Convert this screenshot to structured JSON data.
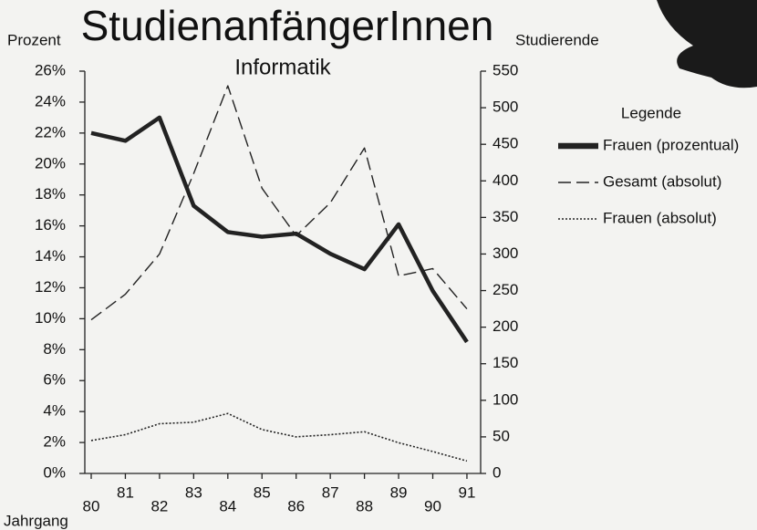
{
  "chart_data": {
    "type": "line",
    "title": "StudienanfängerInnen",
    "subtitle": "Informatik",
    "y_label": "Prozent",
    "y2_label": "Studierende",
    "x_label": "Jahrgang",
    "legend_title": "Legende",
    "legend": "right",
    "categories": [
      "80",
      "81",
      "82",
      "83",
      "84",
      "85",
      "86",
      "87",
      "88",
      "89",
      "90",
      "91"
    ],
    "ylim": [
      0,
      26
    ],
    "yticks": [
      {
        "value": 0,
        "label": "0%"
      },
      {
        "value": 2,
        "label": "2%"
      },
      {
        "value": 4,
        "label": "4%"
      },
      {
        "value": 6,
        "label": "6%"
      },
      {
        "value": 8,
        "label": "8%"
      },
      {
        "value": 10,
        "label": "10%"
      },
      {
        "value": 12,
        "label": "12%"
      },
      {
        "value": 14,
        "label": "14%"
      },
      {
        "value": 16,
        "label": "16%"
      },
      {
        "value": 18,
        "label": "18%"
      },
      {
        "value": 20,
        "label": "20%"
      },
      {
        "value": 22,
        "label": "22%"
      },
      {
        "value": 24,
        "label": "24%"
      },
      {
        "value": 26,
        "label": "26%"
      }
    ],
    "y2lim": [
      0,
      550
    ],
    "y2ticks": [
      0,
      50,
      100,
      150,
      200,
      250,
      300,
      350,
      400,
      450,
      500,
      550
    ],
    "series": [
      {
        "name": "Frauen (prozentual)",
        "color": "#222222",
        "line_style": "solid",
        "values": [
          22.0,
          21.5,
          23.0,
          17.3,
          15.6,
          15.3,
          15.5,
          14.2,
          13.2,
          16.1,
          11.8,
          8.5
        ]
      },
      {
        "name": "Gesamt (absolut)",
        "color": "#222222",
        "line_style": "dashed",
        "axis": "y2",
        "values": [
          210,
          245,
          300,
          410,
          530,
          390,
          325,
          370,
          445,
          270,
          280,
          225
        ]
      },
      {
        "name": "Frauen (absolut)",
        "color": "#222222",
        "line_style": "dotted",
        "axis": "y2",
        "values": [
          45,
          53,
          68,
          70,
          82,
          60,
          50,
          53,
          57,
          42,
          30,
          17
        ]
      }
    ]
  }
}
